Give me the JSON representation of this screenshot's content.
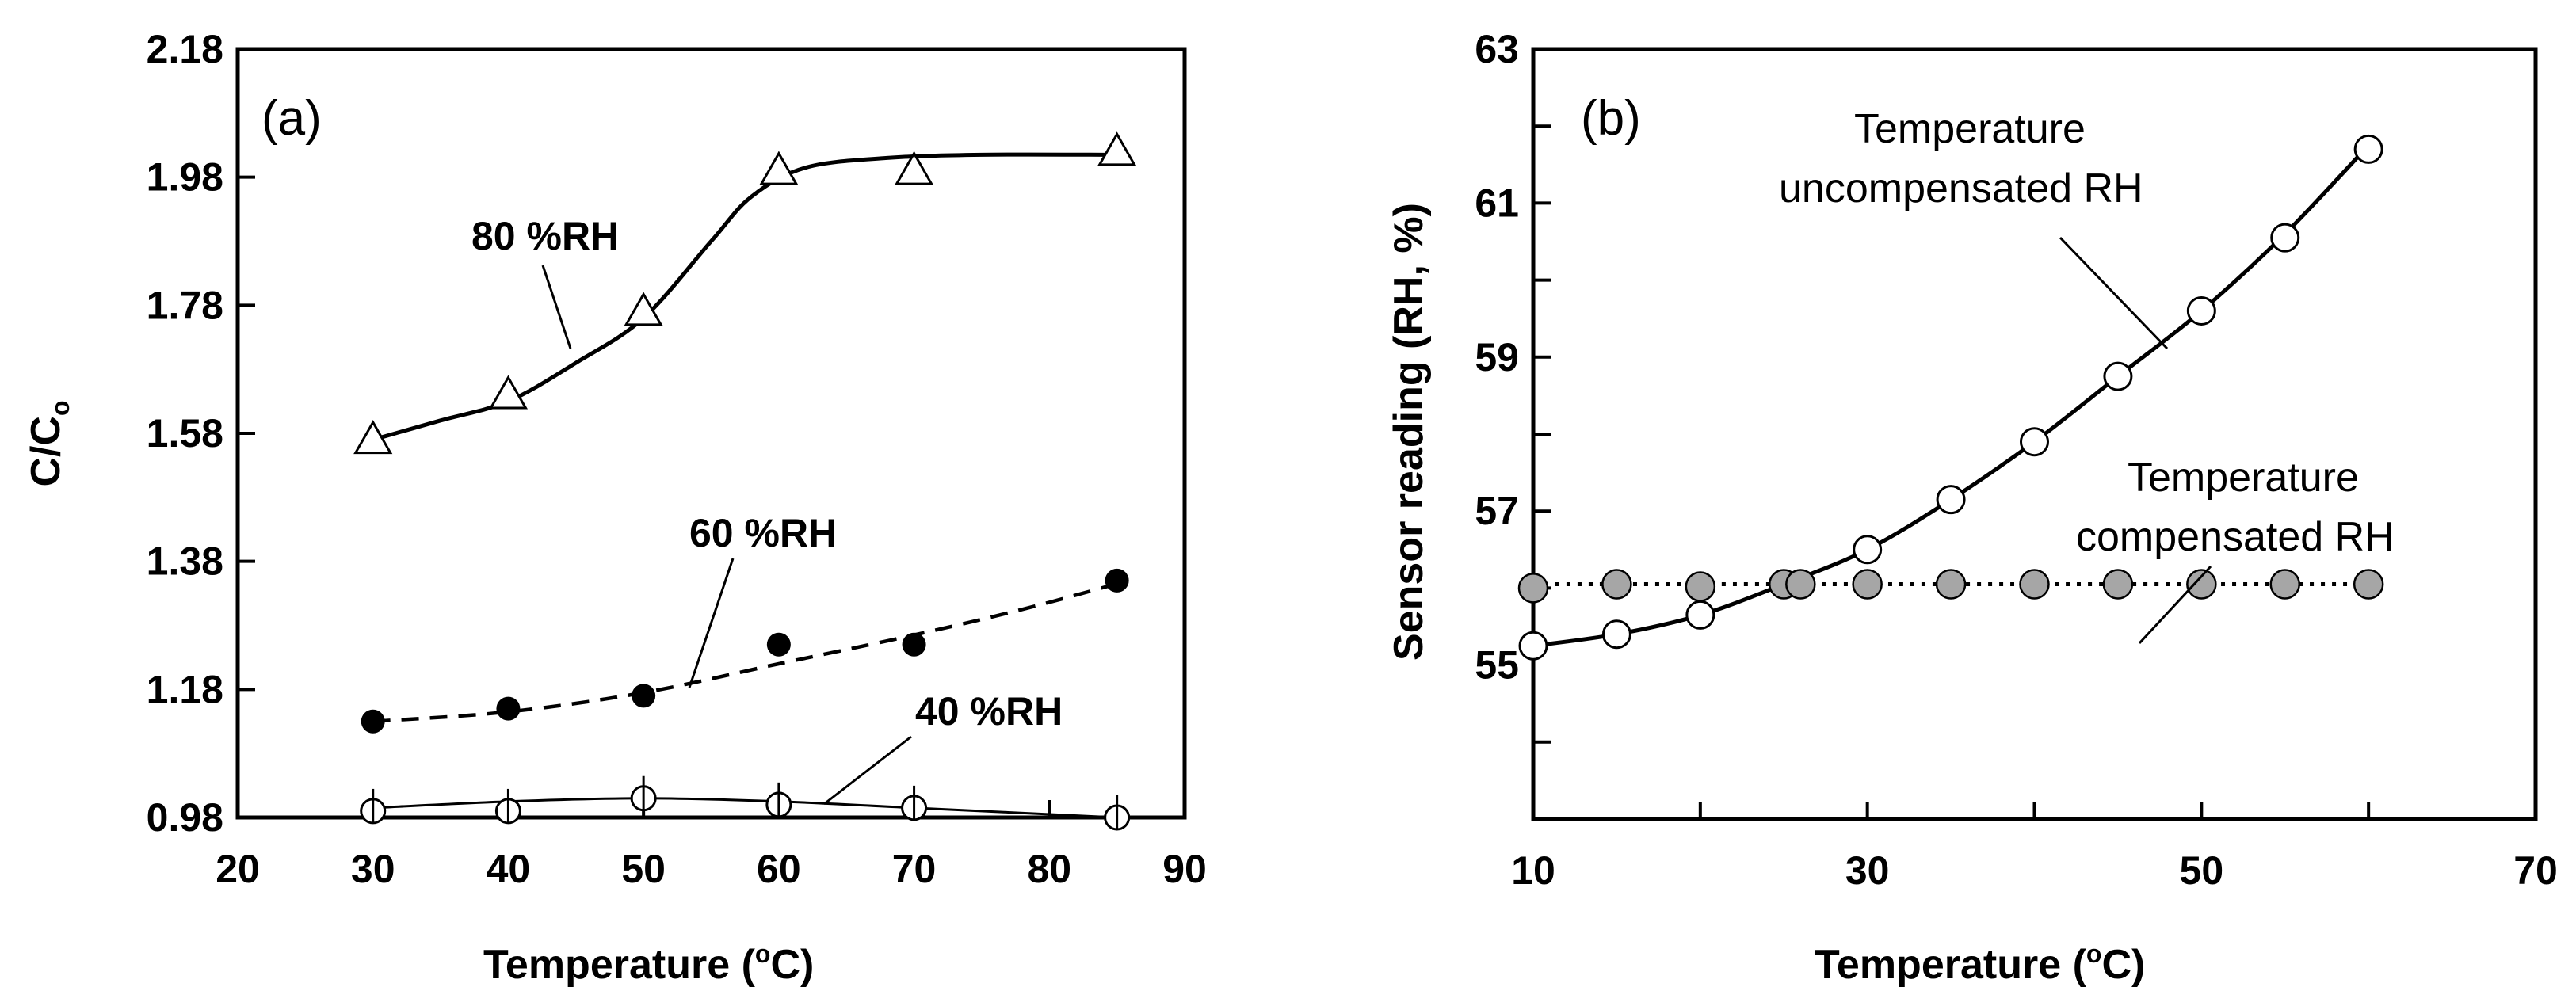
{
  "chart_data": [
    {
      "type": "scatter",
      "panel_label": "(a)",
      "xlabel": {
        "main": "Temperature (",
        "sup": "o",
        "unit": "C)"
      },
      "ylabel": {
        "main": "C/C",
        "sub": "o"
      },
      "xlim": [
        20,
        90
      ],
      "ylim": [
        0.98,
        2.18
      ],
      "xticks": [
        "20",
        "30",
        "40",
        "50",
        "60",
        "70",
        "80",
        "90"
      ],
      "yticks": [
        "0.98",
        "1.18",
        "1.38",
        "1.58",
        "1.78",
        "1.98",
        "2.18"
      ],
      "series": [
        {
          "name": "80 %RH",
          "marker": "open-triangle",
          "line": "solid",
          "points": [
            [
              30,
              1.57
            ],
            [
              40,
              1.64
            ],
            [
              50,
              1.77
            ],
            [
              60,
              1.99
            ],
            [
              70,
              1.99
            ],
            [
              85,
              2.02
            ]
          ],
          "fit": [
            [
              30,
              1.57
            ],
            [
              35,
              1.6
            ],
            [
              40,
              1.63
            ],
            [
              45,
              1.69
            ],
            [
              50,
              1.76
            ],
            [
              55,
              1.88
            ],
            [
              58,
              1.95
            ],
            [
              62,
              1.995
            ],
            [
              68,
              2.01
            ],
            [
              75,
              2.015
            ],
            [
              85,
              2.015
            ]
          ]
        },
        {
          "name": "60 %RH",
          "marker": "filled-circle",
          "line": "dashed",
          "points": [
            [
              30,
              1.13
            ],
            [
              40,
              1.15
            ],
            [
              50,
              1.17
            ],
            [
              60,
              1.25
            ],
            [
              70,
              1.25
            ],
            [
              85,
              1.35
            ]
          ],
          "fit": [
            [
              30,
              1.13
            ],
            [
              40,
              1.145
            ],
            [
              50,
              1.175
            ],
            [
              60,
              1.22
            ],
            [
              70,
              1.265
            ],
            [
              78,
              1.305
            ],
            [
              85,
              1.345
            ]
          ]
        },
        {
          "name": "40 %RH",
          "marker": "half-open-circle",
          "line": "solid",
          "points": [
            [
              30,
              0.99
            ],
            [
              40,
              0.99
            ],
            [
              50,
              1.01
            ],
            [
              60,
              1.0
            ],
            [
              70,
              0.995
            ],
            [
              85,
              0.98
            ]
          ],
          "fit": [
            [
              30,
              0.995
            ],
            [
              40,
              1.005
            ],
            [
              50,
              1.01
            ],
            [
              60,
              1.005
            ],
            [
              70,
              0.995
            ],
            [
              85,
              0.98
            ]
          ]
        }
      ],
      "annotations": [
        "80 %RH",
        "60 %RH",
        "40 %RH"
      ]
    },
    {
      "type": "scatter",
      "panel_label": "(b)",
      "xlabel": {
        "main": "Temperature (",
        "sup": "o",
        "unit": "C)"
      },
      "ylabel": "Sensor reading (RH, %)",
      "xlim": [
        10,
        70
      ],
      "ylim": [
        53,
        63
      ],
      "xticks": [
        "10",
        "30",
        "50",
        "70"
      ],
      "yticks": [
        "55",
        "57",
        "59",
        "61",
        "63"
      ],
      "series": [
        {
          "name": "Temperature uncompensated RH",
          "marker": "open-circle",
          "line": "solid",
          "points": [
            [
              10,
              55.25
            ],
            [
              15,
              55.4
            ],
            [
              20,
              55.65
            ],
            [
              30,
              56.5
            ],
            [
              35,
              57.15
            ],
            [
              40,
              57.9
            ],
            [
              45,
              58.75
            ],
            [
              50,
              59.6
            ],
            [
              55,
              60.55
            ],
            [
              60,
              61.7
            ]
          ],
          "fit": [
            [
              10,
              55.25
            ],
            [
              15,
              55.4
            ],
            [
              20,
              55.65
            ],
            [
              25,
              56.05
            ],
            [
              30,
              56.5
            ],
            [
              35,
              57.15
            ],
            [
              40,
              57.9
            ],
            [
              45,
              58.75
            ],
            [
              50,
              59.6
            ],
            [
              55,
              60.6
            ],
            [
              60,
              61.75
            ]
          ]
        },
        {
          "name": "Temperature compensated RH",
          "marker": "gray-circle",
          "line": "dotted",
          "points": [
            [
              10,
              56.0
            ],
            [
              15,
              56.05
            ],
            [
              20,
              56.02
            ],
            [
              25,
              56.05
            ],
            [
              26,
              56.05
            ],
            [
              30,
              56.05
            ],
            [
              35,
              56.05
            ],
            [
              40,
              56.05
            ],
            [
              45,
              56.05
            ],
            [
              50,
              56.05
            ],
            [
              55,
              56.05
            ],
            [
              60,
              56.05
            ]
          ],
          "fit": [
            [
              10,
              56.05
            ],
            [
              60,
              56.05
            ]
          ]
        }
      ],
      "annotations": {
        "uncompensated": [
          "Temperature",
          "uncompensated RH"
        ],
        "compensated": [
          "Temperature",
          "compensated RH"
        ]
      }
    }
  ],
  "colors": {
    "axis": "#000000",
    "marker_fill_gray": "#a6a6a6",
    "open_fill": "#ffffff"
  }
}
